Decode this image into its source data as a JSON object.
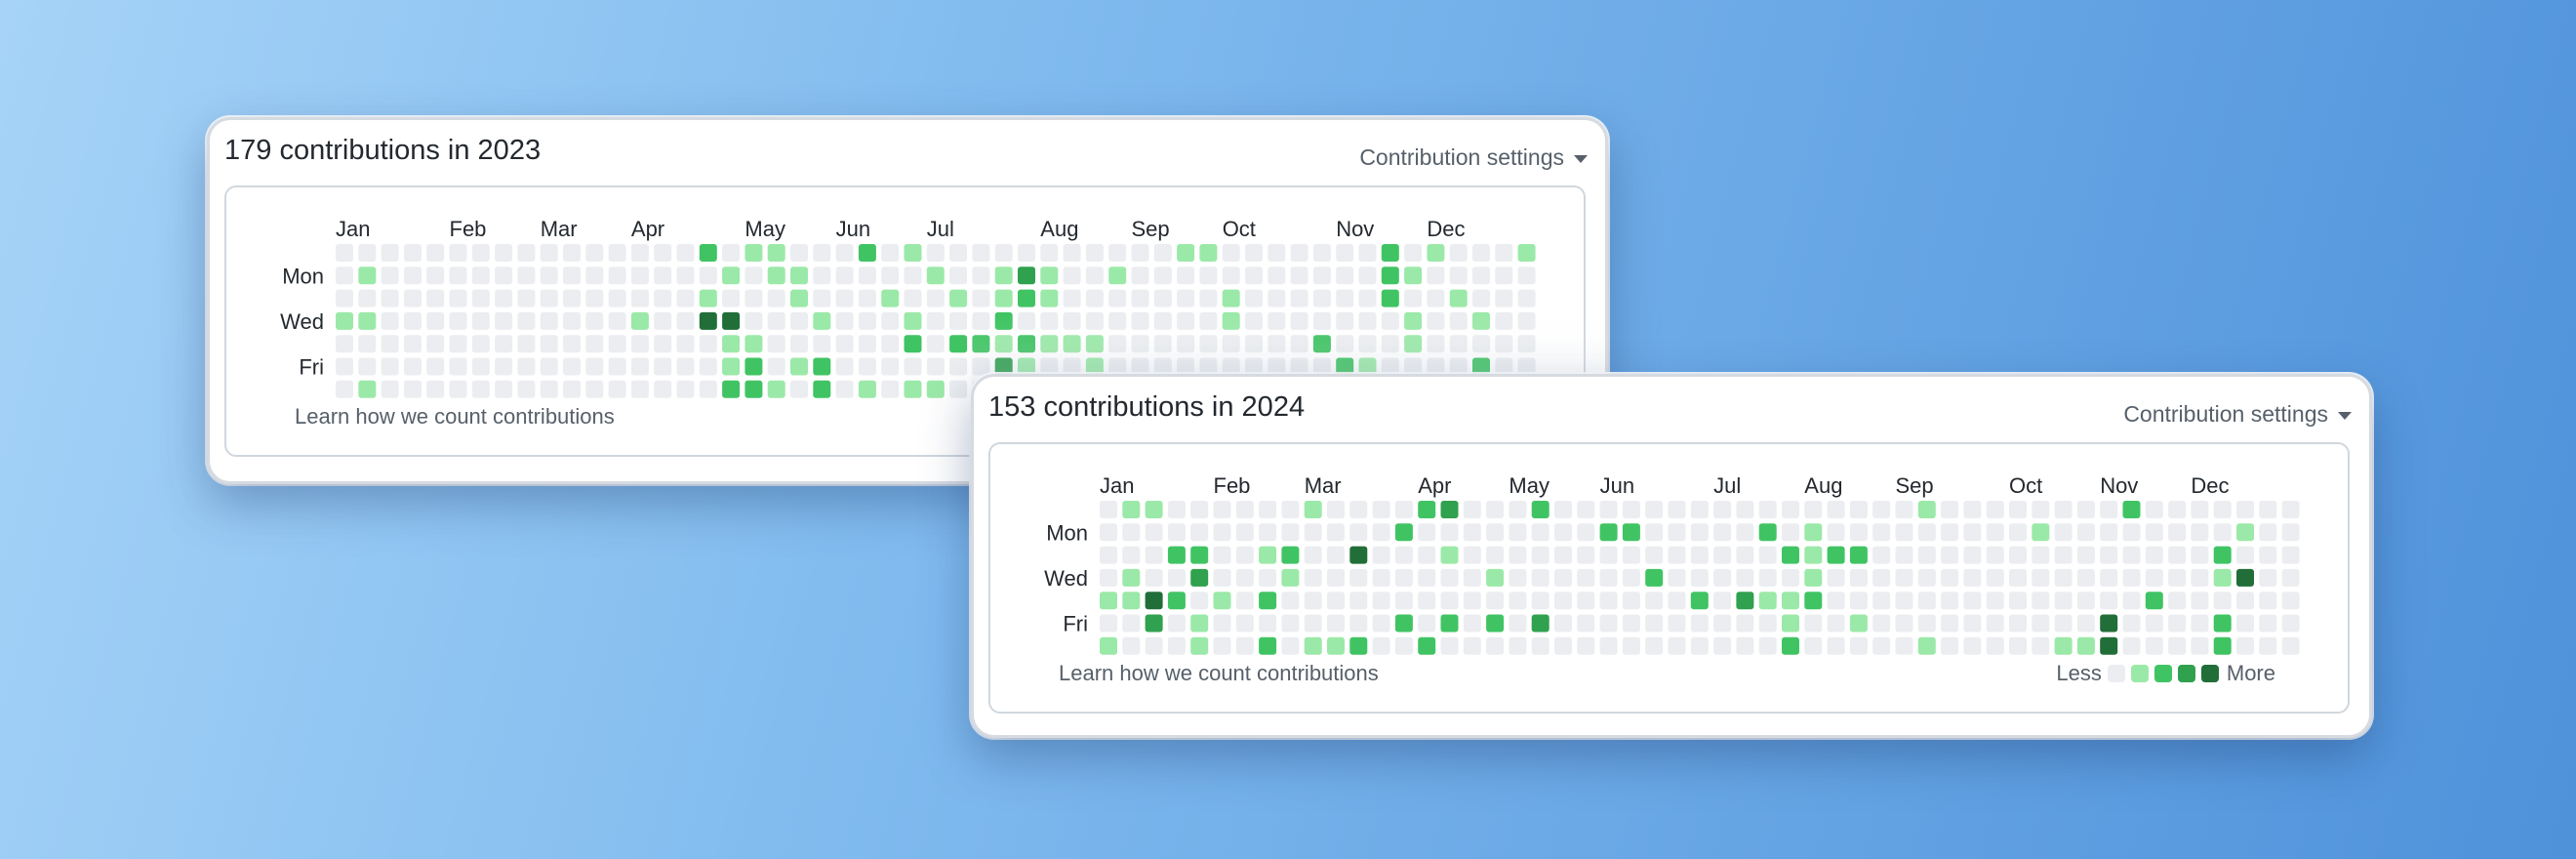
{
  "colors": {
    "level0": "#ebedf0",
    "level1": "#9be9a8",
    "level2": "#40c463",
    "level3": "#30a14e",
    "level4": "#216e39"
  },
  "cards": [
    {
      "title": "179 contributions in 2023",
      "settings_label": "Contribution settings",
      "learn_label": "Learn how we count contributions",
      "weeks": 53,
      "months": [
        {
          "label": "Jan",
          "week": 0
        },
        {
          "label": "Feb",
          "week": 5
        },
        {
          "label": "Mar",
          "week": 9
        },
        {
          "label": "Apr",
          "week": 13
        },
        {
          "label": "May",
          "week": 18
        },
        {
          "label": "Jun",
          "week": 22
        },
        {
          "label": "Jul",
          "week": 26
        },
        {
          "label": "Aug",
          "week": 31
        },
        {
          "label": "Sep",
          "week": 35
        },
        {
          "label": "Oct",
          "week": 39
        },
        {
          "label": "Nov",
          "week": 44
        },
        {
          "label": "Dec",
          "week": 48
        }
      ],
      "day_labels": [
        {
          "label": "Mon",
          "row": 1
        },
        {
          "label": "Wed",
          "row": 3
        },
        {
          "label": "Fri",
          "row": 5
        }
      ],
      "cells": [
        [
          16,
          0,
          2
        ],
        [
          18,
          0,
          1
        ],
        [
          19,
          0,
          1
        ],
        [
          23,
          0,
          2
        ],
        [
          25,
          0,
          1
        ],
        [
          37,
          0,
          1
        ],
        [
          38,
          0,
          1
        ],
        [
          46,
          0,
          2
        ],
        [
          48,
          0,
          1
        ],
        [
          52,
          0,
          1
        ],
        [
          1,
          1,
          1
        ],
        [
          17,
          1,
          1
        ],
        [
          19,
          1,
          1
        ],
        [
          20,
          1,
          1
        ],
        [
          26,
          1,
          1
        ],
        [
          29,
          1,
          1
        ],
        [
          30,
          1,
          3
        ],
        [
          31,
          1,
          1
        ],
        [
          34,
          1,
          1
        ],
        [
          46,
          1,
          2
        ],
        [
          47,
          1,
          1
        ],
        [
          16,
          2,
          1
        ],
        [
          20,
          2,
          1
        ],
        [
          24,
          2,
          1
        ],
        [
          27,
          2,
          1
        ],
        [
          29,
          2,
          1
        ],
        [
          30,
          2,
          2
        ],
        [
          31,
          2,
          1
        ],
        [
          39,
          2,
          1
        ],
        [
          46,
          2,
          2
        ],
        [
          49,
          2,
          1
        ],
        [
          0,
          3,
          1
        ],
        [
          1,
          3,
          1
        ],
        [
          13,
          3,
          1
        ],
        [
          16,
          3,
          4
        ],
        [
          17,
          3,
          4
        ],
        [
          21,
          3,
          1
        ],
        [
          25,
          3,
          1
        ],
        [
          29,
          3,
          2
        ],
        [
          39,
          3,
          1
        ],
        [
          47,
          3,
          1
        ],
        [
          50,
          3,
          1
        ],
        [
          17,
          4,
          1
        ],
        [
          18,
          4,
          1
        ],
        [
          25,
          4,
          2
        ],
        [
          27,
          4,
          2
        ],
        [
          28,
          4,
          2
        ],
        [
          29,
          4,
          1
        ],
        [
          30,
          4,
          2
        ],
        [
          31,
          4,
          1
        ],
        [
          32,
          4,
          1
        ],
        [
          33,
          4,
          1
        ],
        [
          43,
          4,
          2
        ],
        [
          47,
          4,
          1
        ],
        [
          17,
          5,
          1
        ],
        [
          18,
          5,
          2
        ],
        [
          20,
          5,
          1
        ],
        [
          21,
          5,
          2
        ],
        [
          29,
          5,
          3
        ],
        [
          30,
          5,
          1
        ],
        [
          33,
          5,
          1
        ],
        [
          44,
          5,
          2
        ],
        [
          45,
          5,
          1
        ],
        [
          50,
          5,
          2
        ],
        [
          1,
          6,
          1
        ],
        [
          17,
          6,
          2
        ],
        [
          18,
          6,
          2
        ],
        [
          19,
          6,
          1
        ],
        [
          21,
          6,
          2
        ],
        [
          23,
          6,
          1
        ],
        [
          25,
          6,
          1
        ],
        [
          26,
          6,
          1
        ]
      ]
    },
    {
      "title": "153 contributions in 2024",
      "settings_label": "Contribution settings",
      "learn_label": "Learn how we count contributions",
      "legend_less": "Less",
      "legend_more": "More",
      "weeks": 53,
      "months": [
        {
          "label": "Jan",
          "week": 0
        },
        {
          "label": "Feb",
          "week": 5
        },
        {
          "label": "Mar",
          "week": 9
        },
        {
          "label": "Apr",
          "week": 14
        },
        {
          "label": "May",
          "week": 18
        },
        {
          "label": "Jun",
          "week": 22
        },
        {
          "label": "Jul",
          "week": 27
        },
        {
          "label": "Aug",
          "week": 31
        },
        {
          "label": "Sep",
          "week": 35
        },
        {
          "label": "Oct",
          "week": 40
        },
        {
          "label": "Nov",
          "week": 44
        },
        {
          "label": "Dec",
          "week": 48
        }
      ],
      "day_labels": [
        {
          "label": "Mon",
          "row": 1
        },
        {
          "label": "Wed",
          "row": 3
        },
        {
          "label": "Fri",
          "row": 5
        }
      ],
      "cells": [
        [
          1,
          0,
          1
        ],
        [
          2,
          0,
          1
        ],
        [
          9,
          0,
          1
        ],
        [
          14,
          0,
          2
        ],
        [
          15,
          0,
          3
        ],
        [
          19,
          0,
          2
        ],
        [
          36,
          0,
          1
        ],
        [
          45,
          0,
          2
        ],
        [
          13,
          1,
          2
        ],
        [
          22,
          1,
          2
        ],
        [
          23,
          1,
          2
        ],
        [
          29,
          1,
          2
        ],
        [
          31,
          1,
          1
        ],
        [
          41,
          1,
          1
        ],
        [
          50,
          1,
          1
        ],
        [
          3,
          2,
          2
        ],
        [
          4,
          2,
          2
        ],
        [
          7,
          2,
          1
        ],
        [
          8,
          2,
          2
        ],
        [
          11,
          2,
          4
        ],
        [
          15,
          2,
          1
        ],
        [
          30,
          2,
          2
        ],
        [
          31,
          2,
          1
        ],
        [
          32,
          2,
          2
        ],
        [
          33,
          2,
          2
        ],
        [
          49,
          2,
          2
        ],
        [
          1,
          3,
          1
        ],
        [
          4,
          3,
          3
        ],
        [
          8,
          3,
          1
        ],
        [
          17,
          3,
          1
        ],
        [
          24,
          3,
          2
        ],
        [
          31,
          3,
          1
        ],
        [
          49,
          3,
          1
        ],
        [
          50,
          3,
          4
        ],
        [
          0,
          4,
          1
        ],
        [
          1,
          4,
          1
        ],
        [
          2,
          4,
          4
        ],
        [
          3,
          4,
          2
        ],
        [
          5,
          4,
          1
        ],
        [
          7,
          4,
          2
        ],
        [
          26,
          4,
          2
        ],
        [
          28,
          4,
          3
        ],
        [
          29,
          4,
          1
        ],
        [
          30,
          4,
          1
        ],
        [
          31,
          4,
          2
        ],
        [
          46,
          4,
          2
        ],
        [
          2,
          5,
          3
        ],
        [
          4,
          5,
          1
        ],
        [
          13,
          5,
          2
        ],
        [
          15,
          5,
          2
        ],
        [
          17,
          5,
          2
        ],
        [
          19,
          5,
          3
        ],
        [
          30,
          5,
          1
        ],
        [
          33,
          5,
          1
        ],
        [
          44,
          5,
          4
        ],
        [
          49,
          5,
          2
        ],
        [
          0,
          6,
          1
        ],
        [
          4,
          6,
          1
        ],
        [
          7,
          6,
          2
        ],
        [
          9,
          6,
          1
        ],
        [
          10,
          6,
          1
        ],
        [
          11,
          6,
          2
        ],
        [
          14,
          6,
          2
        ],
        [
          30,
          6,
          2
        ],
        [
          36,
          6,
          1
        ],
        [
          42,
          6,
          1
        ],
        [
          43,
          6,
          1
        ],
        [
          44,
          6,
          4
        ],
        [
          49,
          6,
          2
        ]
      ]
    }
  ]
}
